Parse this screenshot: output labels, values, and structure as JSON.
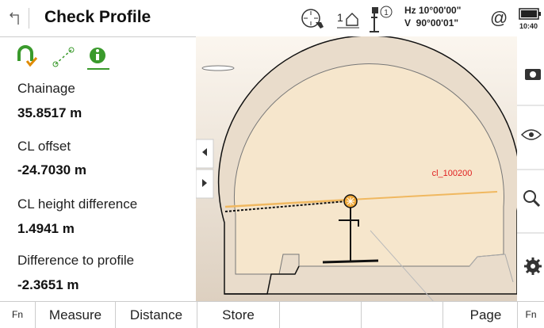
{
  "header": {
    "title": "Check Profile",
    "station_height": "1",
    "hz": "Hz 10°00'00\"",
    "v": "V  90°00'01\"",
    "at": "@",
    "time": "10:40"
  },
  "fields": [
    {
      "label": "Chainage",
      "value": "35.8517 m"
    },
    {
      "label": "CL offset",
      "value": "-24.7030 m"
    },
    {
      "label": "CL height difference",
      "value": "1.4941 m"
    },
    {
      "label": "Difference to profile",
      "value": "-2.3651 m"
    }
  ],
  "view": {
    "profile_label": "cl_100200"
  },
  "softkeys": [
    "Fn",
    "Measure",
    "Distance",
    "Store",
    "Page",
    "Fn"
  ]
}
